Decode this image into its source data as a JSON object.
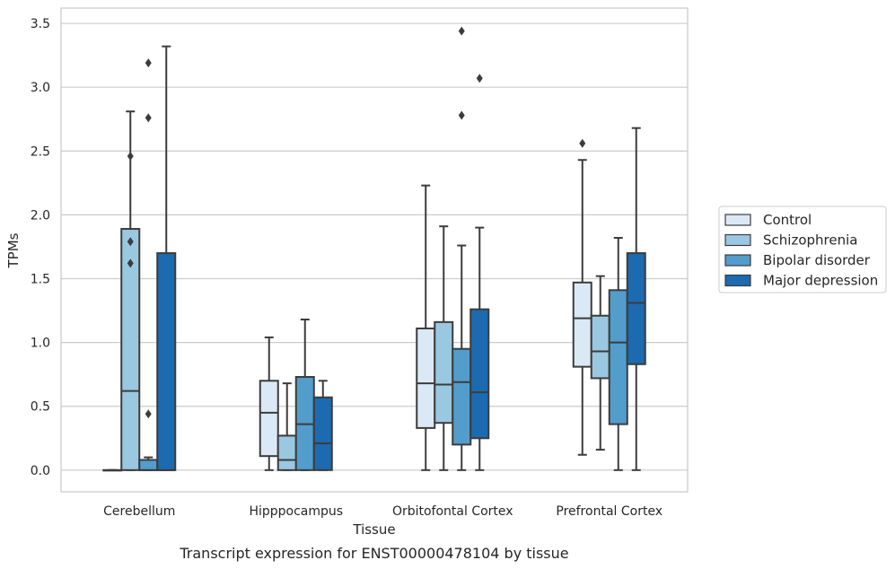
{
  "chart_data": {
    "type": "boxplot",
    "caption": "Transcript expression for ENST00000478104 by tissue",
    "xlabel": "Tissue",
    "ylabel": "TPMs",
    "ylim": [
      -0.17,
      3.62
    ],
    "yticks": [
      "0.0",
      "0.5",
      "1.0",
      "1.5",
      "2.0",
      "2.5",
      "3.0",
      "3.5"
    ],
    "grid": true,
    "legend_position": "right",
    "categories": [
      "Cerebellum",
      "Hipppocampus",
      "Orbitofontal Cortex",
      "Prefrontal Cortex"
    ],
    "series": [
      {
        "name": "Control",
        "color": "#dbe9f6",
        "boxes": [
          {
            "whislo": 0.0,
            "q1": 0.0,
            "med": 0.0,
            "q3": 0.0,
            "whishi": 0.0,
            "fliers": []
          },
          {
            "whislo": 0.0,
            "q1": 0.11,
            "med": 0.45,
            "q3": 0.7,
            "whishi": 1.04,
            "fliers": []
          },
          {
            "whislo": 0.0,
            "q1": 0.33,
            "med": 0.68,
            "q3": 1.11,
            "whishi": 2.23,
            "fliers": []
          },
          {
            "whislo": 0.12,
            "q1": 0.81,
            "med": 1.19,
            "q3": 1.47,
            "whishi": 2.43,
            "fliers": [
              2.56
            ]
          }
        ]
      },
      {
        "name": "Schizophrenia",
        "color": "#9ac8e0",
        "boxes": [
          {
            "whislo": 0.0,
            "q1": 0.0,
            "med": 0.62,
            "q3": 1.89,
            "whishi": 2.81,
            "fliers": [
              2.46,
              1.79,
              1.62
            ]
          },
          {
            "whislo": 0.0,
            "q1": 0.0,
            "med": 0.08,
            "q3": 0.27,
            "whishi": 0.68,
            "fliers": []
          },
          {
            "whislo": 0.0,
            "q1": 0.37,
            "med": 0.67,
            "q3": 1.16,
            "whishi": 1.91,
            "fliers": []
          },
          {
            "whislo": 0.16,
            "q1": 0.72,
            "med": 0.93,
            "q3": 1.21,
            "whishi": 1.52,
            "fliers": []
          }
        ]
      },
      {
        "name": "Bipolar disorder",
        "color": "#529dcc",
        "boxes": [
          {
            "whislo": 0.0,
            "q1": 0.0,
            "med": 0.0,
            "q3": 0.08,
            "whishi": 0.1,
            "fliers": [
              3.19,
              2.76,
              0.44
            ]
          },
          {
            "whislo": 0.0,
            "q1": 0.0,
            "med": 0.36,
            "q3": 0.73,
            "whishi": 1.18,
            "fliers": []
          },
          {
            "whislo": 0.0,
            "q1": 0.2,
            "med": 0.69,
            "q3": 0.95,
            "whishi": 1.76,
            "fliers": [
              3.44,
              2.78
            ]
          },
          {
            "whislo": 0.0,
            "q1": 0.36,
            "med": 1.0,
            "q3": 1.41,
            "whishi": 1.82,
            "fliers": []
          }
        ]
      },
      {
        "name": "Major depression",
        "color": "#1c6aaf",
        "boxes": [
          {
            "whislo": 0.0,
            "q1": 0.0,
            "med": 0.0,
            "q3": 1.7,
            "whishi": 3.32,
            "fliers": []
          },
          {
            "whislo": 0.0,
            "q1": 0.0,
            "med": 0.21,
            "q3": 0.57,
            "whishi": 0.7,
            "fliers": []
          },
          {
            "whislo": 0.0,
            "q1": 0.25,
            "med": 0.61,
            "q3": 1.26,
            "whishi": 1.9,
            "fliers": [
              3.07
            ]
          },
          {
            "whislo": 0.0,
            "q1": 0.83,
            "med": 1.31,
            "q3": 1.7,
            "whishi": 2.68,
            "fliers": []
          }
        ]
      }
    ]
  }
}
